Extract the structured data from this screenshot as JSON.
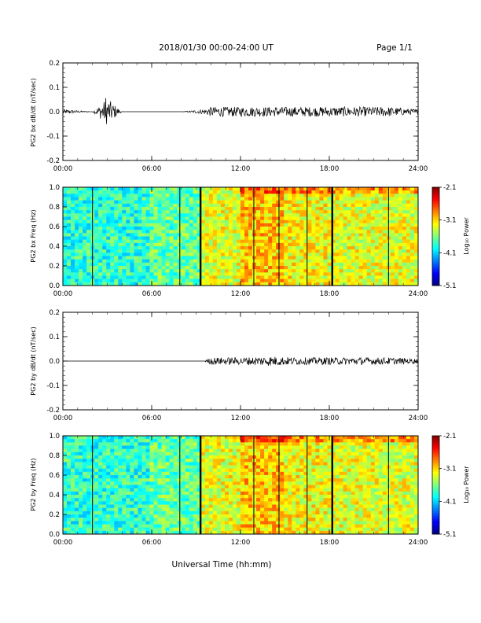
{
  "header": {
    "title": "2018/01/30  00:00-24:00 UT",
    "page": "Page 1/1"
  },
  "colorbar": {
    "label": "Log₁₀ Power",
    "ticks": [
      "-2.1",
      "-3.1",
      "-4.1",
      "-5.1"
    ]
  },
  "xlabel": "Universal Time (hh:mm)",
  "chart_data": [
    {
      "type": "line",
      "ylabel": "PG2 bx dB/dt (nT/sec)",
      "xlim": [
        0,
        24
      ],
      "ylim": [
        -0.2,
        0.2
      ],
      "xticks": [
        "00:00",
        "06:00",
        "12:00",
        "18:00",
        "24:00"
      ],
      "yticks": [
        "0.2",
        "0.1",
        "0.0",
        "-0.1",
        "-0.2"
      ],
      "series": [
        {
          "x": [
            0,
            2,
            3,
            4,
            6,
            8,
            9.5,
            10,
            12,
            14,
            16,
            18,
            20,
            22,
            24
          ],
          "y": [
            0.01,
            0.0,
            0.055,
            0.0,
            0.0,
            0.0,
            0.01,
            0.02,
            0.02,
            0.02,
            0.02,
            0.02,
            0.02,
            0.02,
            0.01
          ]
        }
      ]
    },
    {
      "type": "heatmap",
      "ylabel": "PG2 bx Freq (Hz)",
      "xlim": [
        0,
        24
      ],
      "ylim": [
        0.0,
        1.0
      ],
      "xticks": [
        "00:00",
        "06:00",
        "12:00",
        "18:00",
        "24:00"
      ],
      "yticks": [
        "1.0",
        "0.8",
        "0.6",
        "0.4",
        "0.2",
        "0.0"
      ],
      "zlim": [
        -5.1,
        -2.1
      ],
      "gap_lines_hours": [
        2.0,
        7.9,
        9.3,
        12.9,
        14.6,
        16.5,
        18.2,
        22.0
      ]
    },
    {
      "type": "line",
      "ylabel": "PG2 by dB/dt (nT/sec)",
      "xlim": [
        0,
        24
      ],
      "ylim": [
        -0.2,
        0.2
      ],
      "xticks": [
        "00:00",
        "06:00",
        "12:00",
        "18:00",
        "24:00"
      ],
      "yticks": [
        "0.2",
        "0.1",
        "0.0",
        "-0.1",
        "-0.2"
      ],
      "series": [
        {
          "x": [
            0,
            2,
            4,
            6,
            8,
            9.5,
            10,
            12,
            14,
            16,
            18,
            20,
            22,
            24
          ],
          "y": [
            0.0,
            0.0,
            0.0,
            0.0,
            0.0,
            0.0,
            0.015,
            0.015,
            0.02,
            0.015,
            0.015,
            0.015,
            0.015,
            0.01
          ]
        }
      ]
    },
    {
      "type": "heatmap",
      "ylabel": "PG2 by Freq (Hz)",
      "xlim": [
        0,
        24
      ],
      "ylim": [
        0.0,
        1.0
      ],
      "xticks": [
        "00:00",
        "06:00",
        "12:00",
        "18:00",
        "24:00"
      ],
      "yticks": [
        "1.0",
        "0.8",
        "0.6",
        "0.4",
        "0.2",
        "0.0"
      ],
      "zlim": [
        -5.1,
        -2.1
      ],
      "gap_lines_hours": [
        2.0,
        7.9,
        9.3,
        12.9,
        14.6,
        16.5,
        18.2,
        22.0
      ]
    }
  ]
}
